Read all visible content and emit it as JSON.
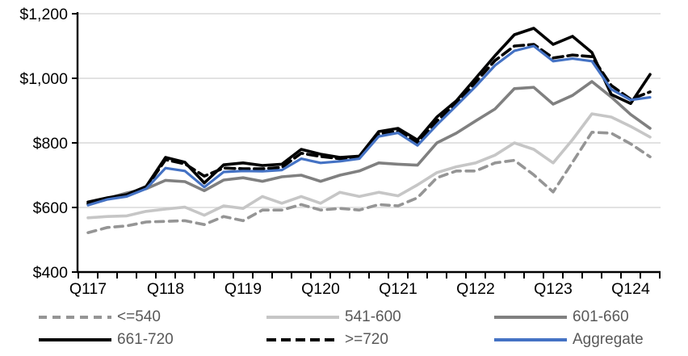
{
  "chart_data": {
    "type": "line",
    "title": "",
    "xlabel": "",
    "ylabel": "",
    "y_axis": {
      "min": 400,
      "max": 1200,
      "step": 200,
      "tick_labels": [
        "$400",
        "$600",
        "$800",
        "$1,000",
        "$1,200"
      ]
    },
    "x_axis": {
      "visible_tick_labels": [
        "Q117",
        "Q118",
        "Q119",
        "Q120",
        "Q121",
        "Q122",
        "Q123",
        "Q124"
      ],
      "categories": [
        "Q117",
        "Q217",
        "Q317",
        "Q417",
        "Q118",
        "Q218",
        "Q318",
        "Q418",
        "Q119",
        "Q219",
        "Q319",
        "Q419",
        "Q120",
        "Q220",
        "Q320",
        "Q420",
        "Q121",
        "Q221",
        "Q321",
        "Q421",
        "Q122",
        "Q222",
        "Q322",
        "Q422",
        "Q123",
        "Q223",
        "Q323",
        "Q423",
        "Q124",
        "Q224"
      ]
    },
    "grid": "horizontal",
    "legend_position": "bottom",
    "series": [
      {
        "name": "<=540",
        "color": "#959595",
        "style": "dashed",
        "values": [
          522,
          538,
          543,
          555,
          557,
          559,
          547,
          572,
          559,
          592,
          592,
          609,
          592,
          597,
          592,
          609,
          605,
          630,
          692,
          713,
          713,
          738,
          746,
          701,
          648,
          740,
          833,
          830,
          797,
          757
        ]
      },
      {
        "name": "541-600",
        "color": "#C6C6C6",
        "style": "solid",
        "values": [
          568,
          572,
          574,
          588,
          595,
          601,
          576,
          605,
          597,
          634,
          613,
          634,
          613,
          647,
          634,
          647,
          636,
          670,
          708,
          726,
          738,
          762,
          800,
          780,
          738,
          810,
          890,
          880,
          851,
          818
        ]
      },
      {
        "name": "601-660",
        "color": "#808080",
        "style": "solid",
        "values": [
          612,
          628,
          645,
          658,
          684,
          680,
          652,
          685,
          692,
          681,
          695,
          700,
          681,
          700,
          713,
          738,
          734,
          731,
          800,
          830,
          868,
          905,
          968,
          972,
          920,
          947,
          990,
          942,
          888,
          845
        ]
      },
      {
        "name": "661-720",
        "color": "#000000",
        "style": "solid",
        "values": [
          617,
          630,
          640,
          665,
          755,
          740,
          676,
          732,
          738,
          730,
          734,
          780,
          765,
          755,
          759,
          835,
          845,
          809,
          880,
          930,
          1000,
          1070,
          1135,
          1155,
          1105,
          1130,
          1080,
          950,
          922,
          1012
        ]
      },
      {
        "name": ">=720",
        "color": "#000000",
        "style": "dashed",
        "values": [
          611,
          627,
          637,
          661,
          748,
          735,
          697,
          722,
          720,
          720,
          724,
          768,
          758,
          751,
          755,
          828,
          836,
          801,
          868,
          920,
          988,
          1055,
          1100,
          1105,
          1063,
          1072,
          1067,
          978,
          935,
          958
        ]
      },
      {
        "name": "Aggregate",
        "color": "#4472C4",
        "style": "solid",
        "values": [
          607,
          625,
          634,
          658,
          722,
          713,
          663,
          710,
          713,
          712,
          716,
          751,
          738,
          743,
          751,
          820,
          831,
          792,
          856,
          915,
          975,
          1040,
          1085,
          1100,
          1053,
          1061,
          1053,
          966,
          933,
          941
        ]
      }
    ],
    "legend_order": [
      0,
      1,
      2,
      3,
      4,
      5
    ]
  },
  "colors": {
    "axis": "#000000",
    "gridline": "#D9D9D9",
    "tick_label": "#000000",
    "legend_text": "#595959",
    "accent_blue": "#4472C4"
  }
}
